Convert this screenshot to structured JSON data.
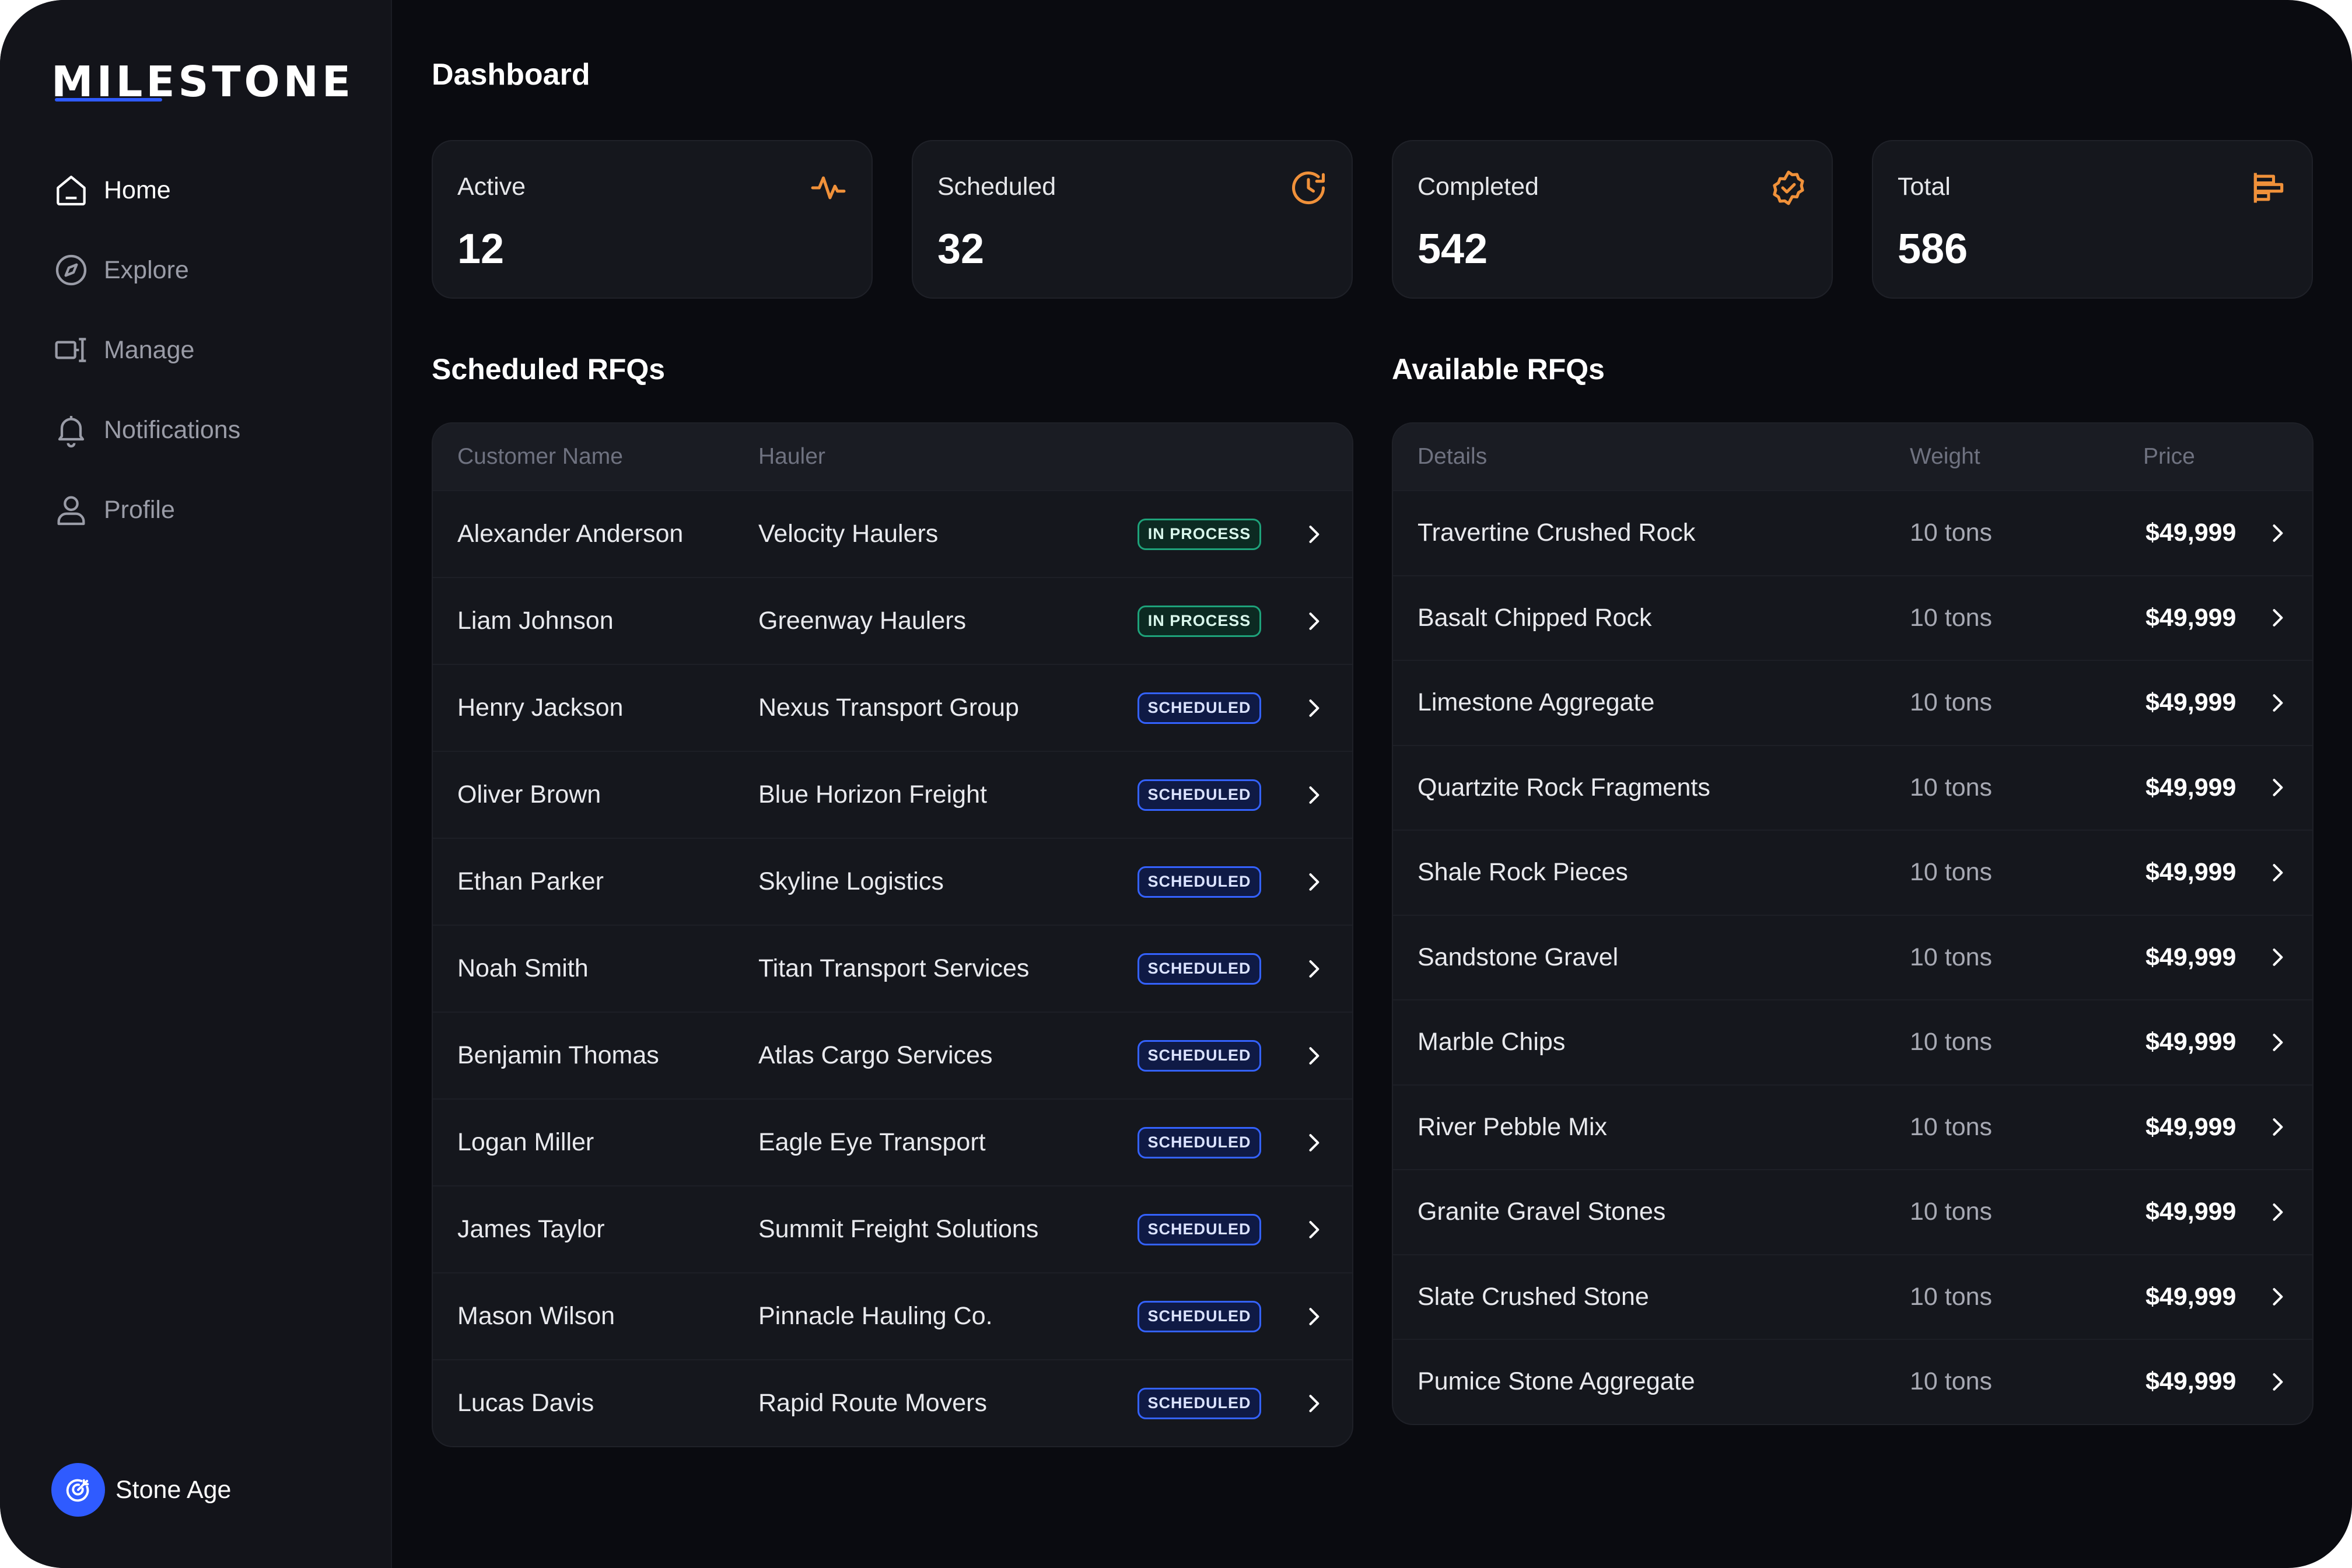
{
  "brand": {
    "logo_text": "MILESTONE"
  },
  "nav": [
    {
      "label": "Home",
      "icon": "home-icon",
      "active": true
    },
    {
      "label": "Explore",
      "icon": "compass-icon",
      "active": false
    },
    {
      "label": "Manage",
      "icon": "manage-icon",
      "active": false
    },
    {
      "label": "Notifications",
      "icon": "bell-icon",
      "active": false
    },
    {
      "label": "Profile",
      "icon": "user-icon",
      "active": false
    }
  ],
  "account": {
    "name": "Stone Age",
    "icon": "target-icon"
  },
  "page": {
    "title": "Dashboard"
  },
  "stats": [
    {
      "label": "Active",
      "value": "12",
      "icon": "activity-icon"
    },
    {
      "label": "Scheduled",
      "value": "32",
      "icon": "clock-icon"
    },
    {
      "label": "Completed",
      "value": "542",
      "icon": "check-badge-icon"
    },
    {
      "label": "Total",
      "value": "586",
      "icon": "bars-icon"
    }
  ],
  "colors": {
    "accent": "#2f5bff",
    "icon_orange": "#f0913a",
    "in_process": "#1ea27a",
    "scheduled": "#3462ff"
  },
  "scheduled": {
    "title": "Scheduled RFQs",
    "columns": {
      "customer": "Customer Name",
      "hauler": "Hauler"
    },
    "rows": [
      {
        "customer": "Alexander Anderson",
        "hauler": "Velocity Haulers",
        "status": "IN PROCESS"
      },
      {
        "customer": "Liam Johnson",
        "hauler": "Greenway Haulers",
        "status": "IN PROCESS"
      },
      {
        "customer": "Henry Jackson",
        "hauler": "Nexus Transport Group",
        "status": "SCHEDULED"
      },
      {
        "customer": "Oliver Brown",
        "hauler": "Blue Horizon Freight",
        "status": "SCHEDULED"
      },
      {
        "customer": "Ethan Parker",
        "hauler": "Skyline Logistics",
        "status": "SCHEDULED"
      },
      {
        "customer": "Noah Smith",
        "hauler": "Titan Transport Services",
        "status": "SCHEDULED"
      },
      {
        "customer": "Benjamin Thomas",
        "hauler": "Atlas Cargo Services",
        "status": "SCHEDULED"
      },
      {
        "customer": "Logan Miller",
        "hauler": "Eagle Eye Transport",
        "status": "SCHEDULED"
      },
      {
        "customer": "James Taylor",
        "hauler": "Summit Freight Solutions",
        "status": "SCHEDULED"
      },
      {
        "customer": "Mason Wilson",
        "hauler": "Pinnacle Hauling Co.",
        "status": "SCHEDULED"
      },
      {
        "customer": "Lucas Davis",
        "hauler": "Rapid Route Movers",
        "status": "SCHEDULED"
      }
    ]
  },
  "available": {
    "title": "Available RFQs",
    "columns": {
      "details": "Details",
      "weight": "Weight",
      "price": "Price"
    },
    "rows": [
      {
        "details": "Travertine Crushed Rock",
        "weight": "10 tons",
        "price": "$49,999"
      },
      {
        "details": "Basalt Chipped Rock",
        "weight": "10 tons",
        "price": "$49,999"
      },
      {
        "details": "Limestone Aggregate",
        "weight": "10 tons",
        "price": "$49,999"
      },
      {
        "details": "Quartzite Rock Fragments",
        "weight": "10 tons",
        "price": "$49,999"
      },
      {
        "details": "Shale Rock Pieces",
        "weight": "10 tons",
        "price": "$49,999"
      },
      {
        "details": "Sandstone Gravel",
        "weight": "10 tons",
        "price": "$49,999"
      },
      {
        "details": "Marble Chips",
        "weight": "10 tons",
        "price": "$49,999"
      },
      {
        "details": "River Pebble Mix",
        "weight": "10 tons",
        "price": "$49,999"
      },
      {
        "details": "Granite Gravel Stones",
        "weight": "10 tons",
        "price": "$49,999"
      },
      {
        "details": "Slate Crushed Stone",
        "weight": "10 tons",
        "price": "$49,999"
      },
      {
        "details": "Pumice Stone Aggregate",
        "weight": "10 tons",
        "price": "$49,999"
      }
    ]
  }
}
